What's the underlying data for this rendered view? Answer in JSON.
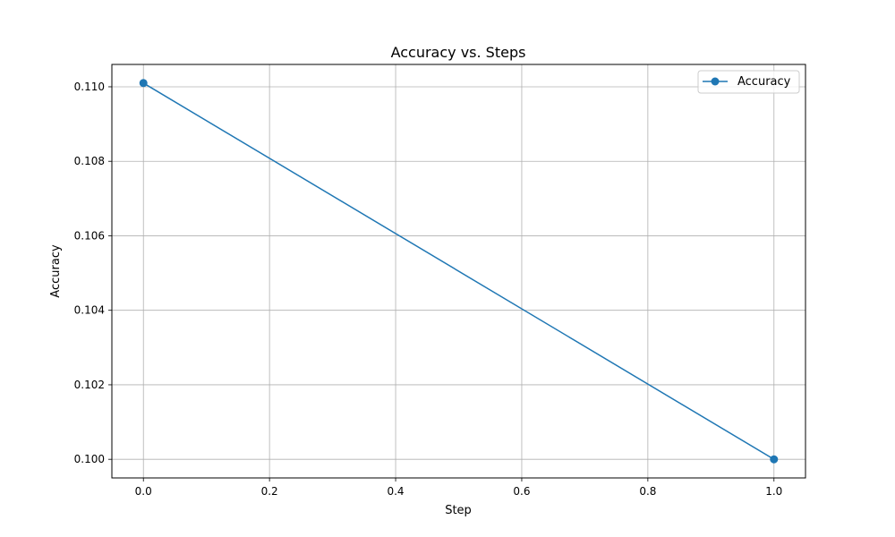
{
  "chart_data": {
    "type": "line",
    "title": "Accuracy vs. Steps",
    "xlabel": "Step",
    "ylabel": "Accuracy",
    "xlim": [
      -0.05,
      1.05
    ],
    "ylim": [
      0.0995,
      0.1106
    ],
    "x_ticks": [
      0.0,
      0.2,
      0.4,
      0.6,
      0.8,
      1.0
    ],
    "x_tick_labels": [
      "0.0",
      "0.2",
      "0.4",
      "0.6",
      "0.8",
      "1.0"
    ],
    "y_ticks": [
      0.1,
      0.102,
      0.104,
      0.106,
      0.108,
      0.11
    ],
    "y_tick_labels": [
      "0.100",
      "0.102",
      "0.104",
      "0.106",
      "0.108",
      "0.110"
    ],
    "grid": true,
    "legend_position": "top-right",
    "series": [
      {
        "name": "Accuracy",
        "color": "#1f77b4",
        "x": [
          0.0,
          1.0
        ],
        "y": [
          0.1101,
          0.1
        ]
      }
    ]
  }
}
